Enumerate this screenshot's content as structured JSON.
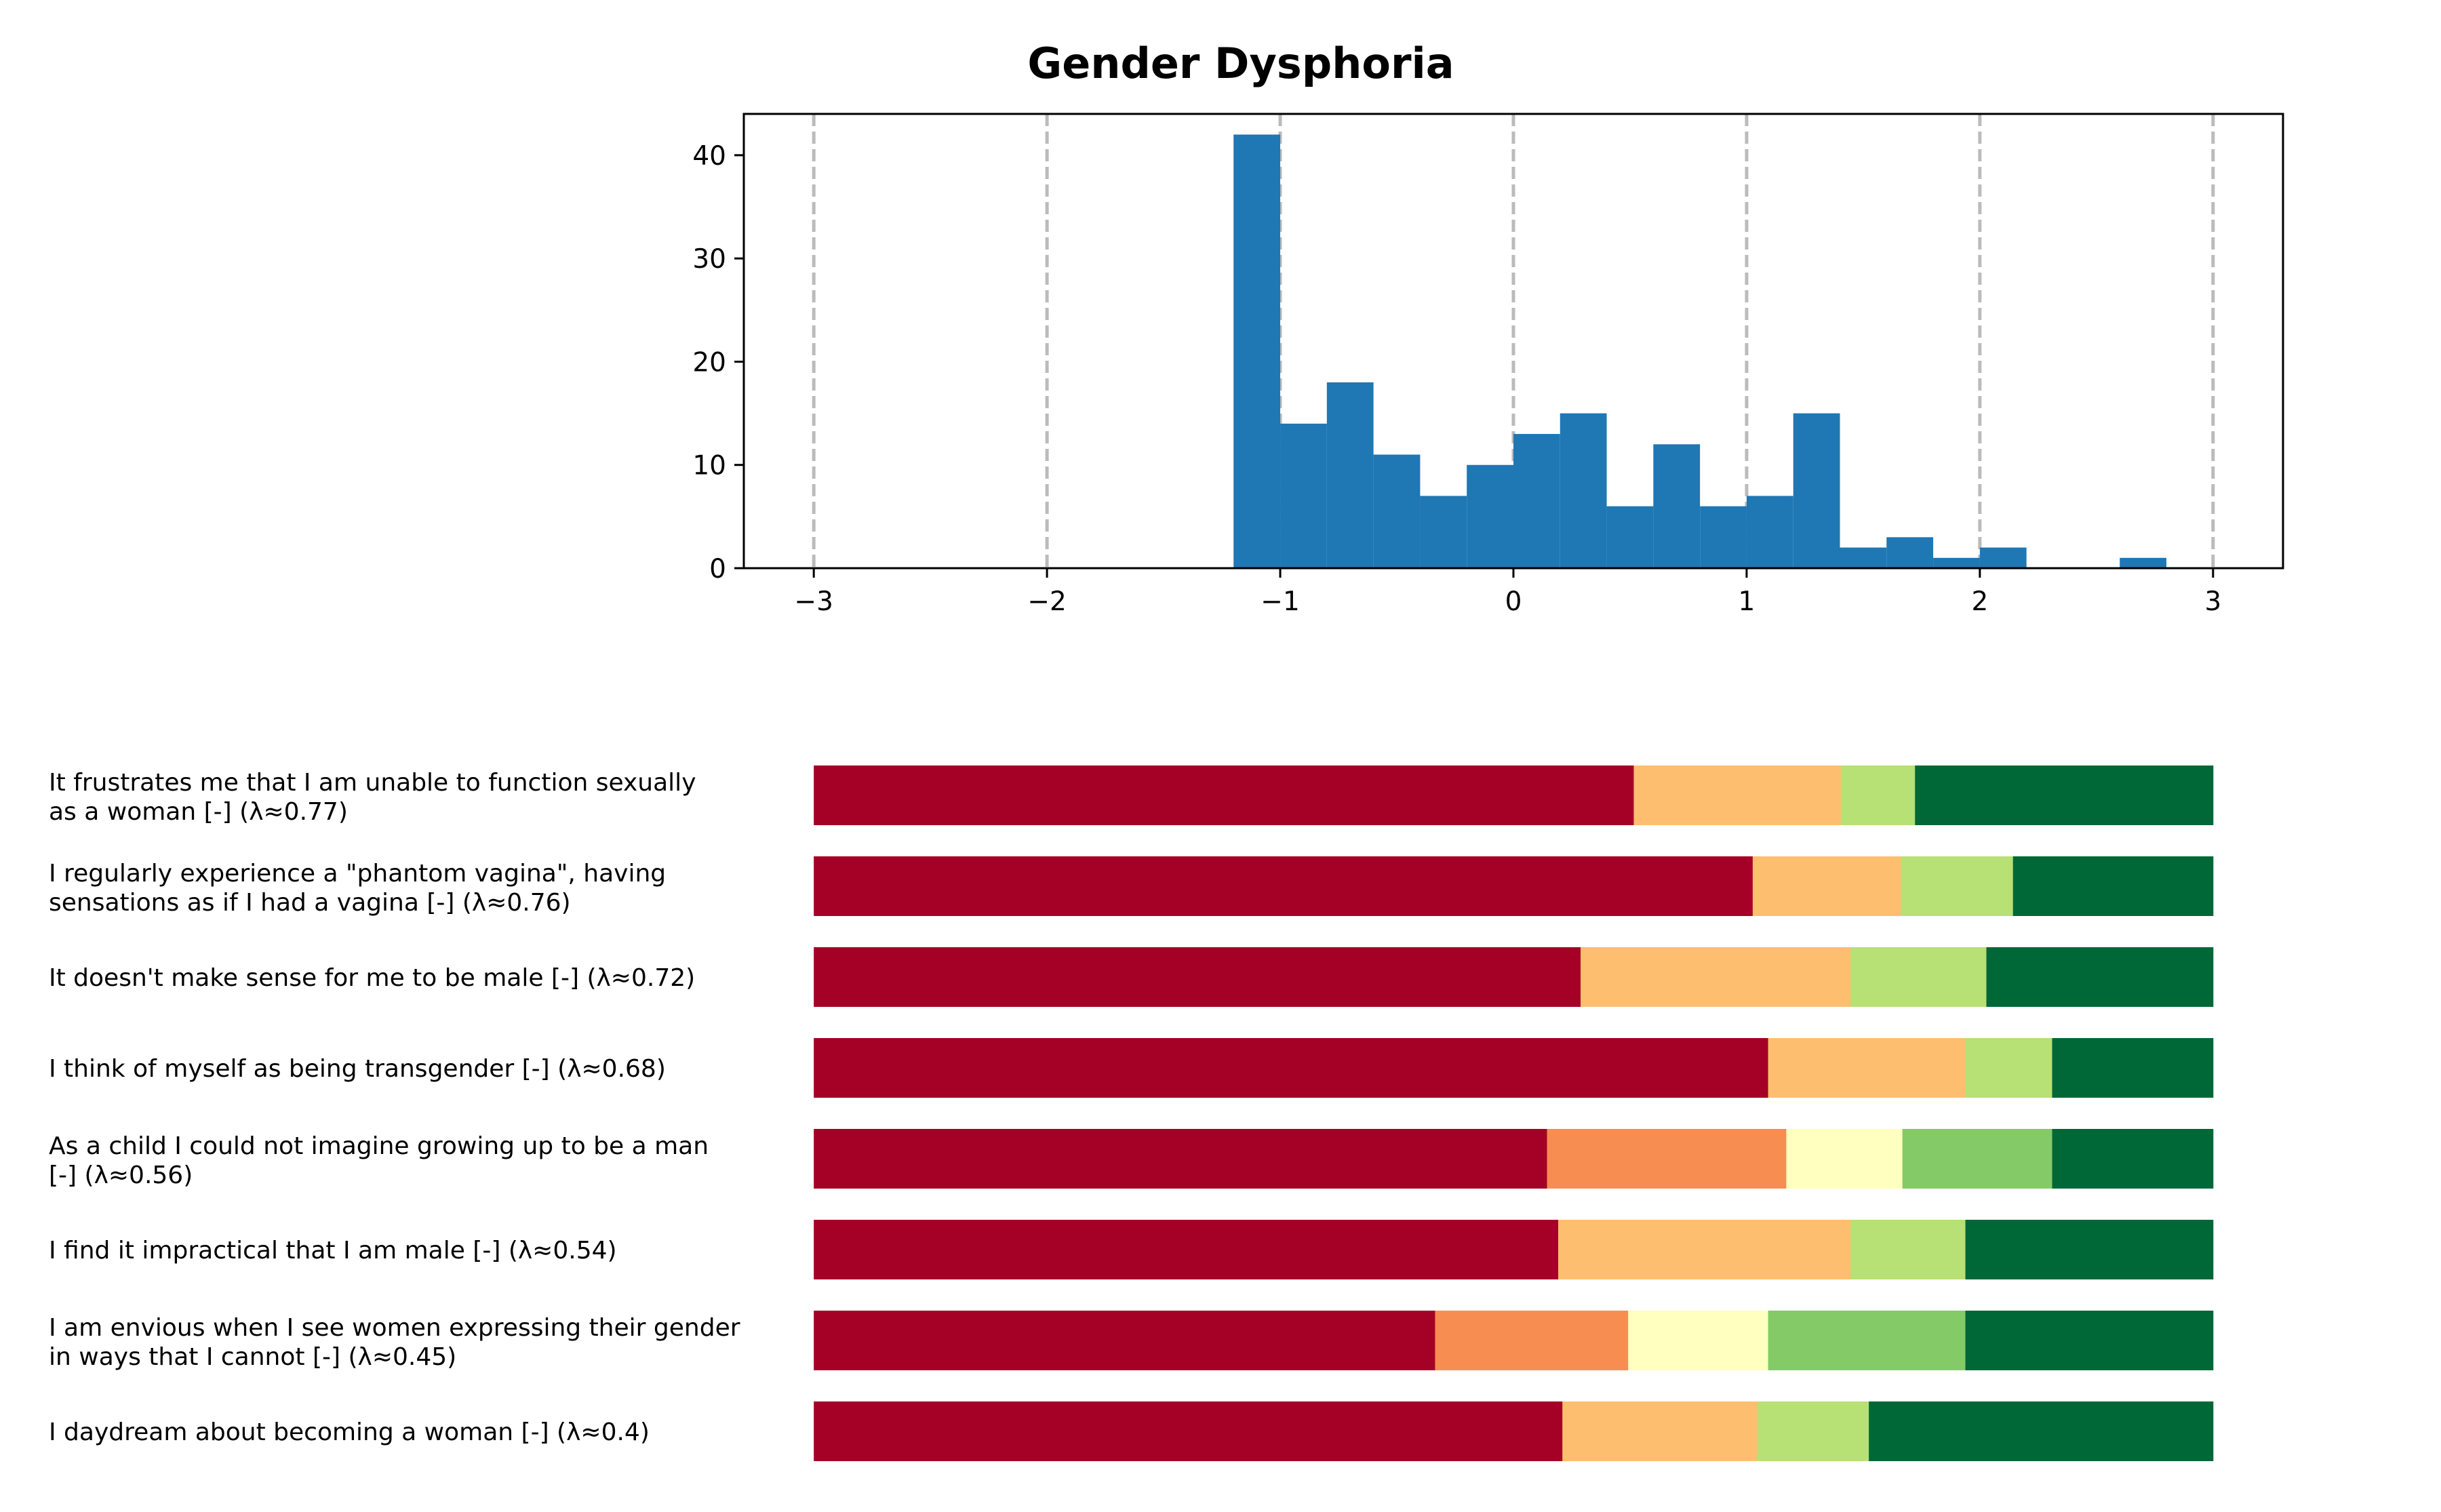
{
  "chart_data": [
    {
      "type": "histogram",
      "title": "Gender Dysphoria",
      "xlabel": "",
      "ylabel": "",
      "xlim": [
        -3.3,
        3.3
      ],
      "ylim": [
        0,
        44
      ],
      "xticks": [
        -3,
        -2,
        -1,
        0,
        1,
        2,
        3
      ],
      "xtick_labels": [
        "−3",
        "−2",
        "−1",
        "0",
        "1",
        "2",
        "3"
      ],
      "yticks": [
        0,
        10,
        20,
        30,
        40
      ],
      "ytick_labels": [
        "0",
        "10",
        "20",
        "30",
        "40"
      ],
      "grid": "dashed vertical lines at x ticks",
      "bar_color": "#1f77b4",
      "grid_color": "#bbbbbb",
      "bin_width": 0.2,
      "bins": [
        {
          "x0": -1.2,
          "count": 42
        },
        {
          "x0": -1.0,
          "count": 14
        },
        {
          "x0": -0.8,
          "count": 18
        },
        {
          "x0": -0.6,
          "count": 11
        },
        {
          "x0": -0.4,
          "count": 7
        },
        {
          "x0": -0.2,
          "count": 10
        },
        {
          "x0": 0.0,
          "count": 13
        },
        {
          "x0": 0.2,
          "count": 15
        },
        {
          "x0": 0.4,
          "count": 6
        },
        {
          "x0": 0.6,
          "count": 12
        },
        {
          "x0": 0.8,
          "count": 6
        },
        {
          "x0": 1.0,
          "count": 7
        },
        {
          "x0": 1.2,
          "count": 15
        },
        {
          "x0": 1.4,
          "count": 2
        },
        {
          "x0": 1.6,
          "count": 3
        },
        {
          "x0": 1.8,
          "count": 1
        },
        {
          "x0": 2.0,
          "count": 2
        },
        {
          "x0": 2.2,
          "count": 0
        },
        {
          "x0": 2.4,
          "count": 0
        },
        {
          "x0": 2.6,
          "count": 1
        }
      ]
    },
    {
      "type": "stacked-bar-horizontal",
      "scale_range": [
        -3,
        3
      ],
      "note": "segment values are fractions of each item's responses (left to right)",
      "colors": {
        "c1": "#a50026",
        "c2": "#f88d52",
        "c3": "#fdbf6f",
        "c4": "#ffffbf",
        "c5": "#b7e075",
        "c6": "#84ca66",
        "c7": "#006837"
      },
      "items": [
        {
          "label_line1": "It frustrates me that I am unable to function sexually",
          "label_line2": "as a woman [-] (λ≈0.77)",
          "segments": [
            {
              "color": "c1",
              "value": 0.586
            },
            {
              "color": "c3",
              "value": 0.148
            },
            {
              "color": "c5",
              "value": 0.053
            },
            {
              "color": "c7",
              "value": 0.213
            }
          ]
        },
        {
          "label_line1": "I regularly experience a \"phantom vagina\", having",
          "label_line2": "sensations as if I had a vagina [-] (λ≈0.76)",
          "segments": [
            {
              "color": "c1",
              "value": 0.671
            },
            {
              "color": "c3",
              "value": 0.106
            },
            {
              "color": "c5",
              "value": 0.08
            },
            {
              "color": "c7",
              "value": 0.143
            }
          ]
        },
        {
          "label_line1": "It doesn't make sense for me to be male [-] (λ≈0.72)",
          "label_line2": "",
          "segments": [
            {
              "color": "c1",
              "value": 0.548
            },
            {
              "color": "c3",
              "value": 0.193
            },
            {
              "color": "c5",
              "value": 0.097
            },
            {
              "color": "c7",
              "value": 0.162
            }
          ]
        },
        {
          "label_line1": "I think of myself as being transgender [-] (λ≈0.68)",
          "label_line2": "",
          "segments": [
            {
              "color": "c1",
              "value": 0.682
            },
            {
              "color": "c3",
              "value": 0.141
            },
            {
              "color": "c5",
              "value": 0.062
            },
            {
              "color": "c7",
              "value": 0.115
            }
          ]
        },
        {
          "label_line1": "As a child I could not imagine growing up to be a man",
          "label_line2": "[-] (λ≈0.56)",
          "segments": [
            {
              "color": "c1",
              "value": 0.524
            },
            {
              "color": "c2",
              "value": 0.171
            },
            {
              "color": "c4",
              "value": 0.083
            },
            {
              "color": "c6",
              "value": 0.107
            },
            {
              "color": "c7",
              "value": 0.115
            }
          ]
        },
        {
          "label_line1": "I find it impractical that I am male [-] (λ≈0.54)",
          "label_line2": "",
          "segments": [
            {
              "color": "c1",
              "value": 0.532
            },
            {
              "color": "c3",
              "value": 0.209
            },
            {
              "color": "c5",
              "value": 0.082
            },
            {
              "color": "c7",
              "value": 0.177
            }
          ]
        },
        {
          "label_line1": "I am envious when I see women expressing their gender",
          "label_line2": "in ways that I cannot [-] (λ≈0.45)",
          "segments": [
            {
              "color": "c1",
              "value": 0.444
            },
            {
              "color": "c2",
              "value": 0.138
            },
            {
              "color": "c4",
              "value": 0.1
            },
            {
              "color": "c6",
              "value": 0.141
            },
            {
              "color": "c7",
              "value": 0.177
            }
          ]
        },
        {
          "label_line1": "I daydream about becoming a woman [-] (λ≈0.4)",
          "label_line2": "",
          "segments": [
            {
              "color": "c1",
              "value": 0.535
            },
            {
              "color": "c3",
              "value": 0.139
            },
            {
              "color": "c5",
              "value": 0.08
            },
            {
              "color": "c7",
              "value": 0.246
            }
          ]
        }
      ]
    }
  ]
}
